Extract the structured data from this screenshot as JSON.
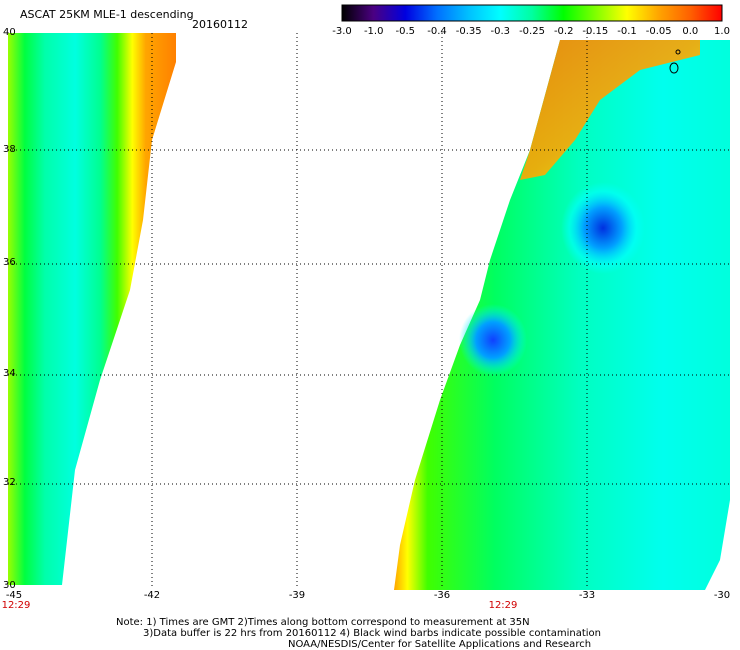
{
  "header": {
    "title": "ASCAT 25KM MLE-1 descending",
    "date": "20160112"
  },
  "colorbar": {
    "labels": [
      "-3.0",
      "-1.0",
      "-0.5",
      "-0.4",
      "-0.35",
      "-0.3",
      "-0.25",
      "-0.2",
      "-0.15",
      "-0.1",
      "-0.05",
      "0.0",
      "1.0"
    ],
    "colors": [
      "#000000",
      "#4b0082",
      "#0000e0",
      "#0070ff",
      "#00c0ff",
      "#00ffff",
      "#00ffa0",
      "#00ff00",
      "#80ff00",
      "#ffff00",
      "#ffa500",
      "#ff6000",
      "#ff0000"
    ]
  },
  "axes": {
    "lat_labels": [
      "40",
      "38",
      "36",
      "34",
      "32",
      "30"
    ],
    "lon_labels": [
      "-45",
      "-42",
      "-39",
      "-36",
      "-33",
      "-30"
    ]
  },
  "pass_times": [
    "12:29",
    "12:29"
  ],
  "footer": {
    "line1": "Note: 1) Times are GMT 2)Times along bottom correspond to measurement at 35N",
    "line2": "3)Data buffer is 22 hrs from 20160112 4) Black wind barbs indicate possible contamination",
    "line3": "NOAA/NESDIS/Center for Satellite Applications and Research"
  }
}
